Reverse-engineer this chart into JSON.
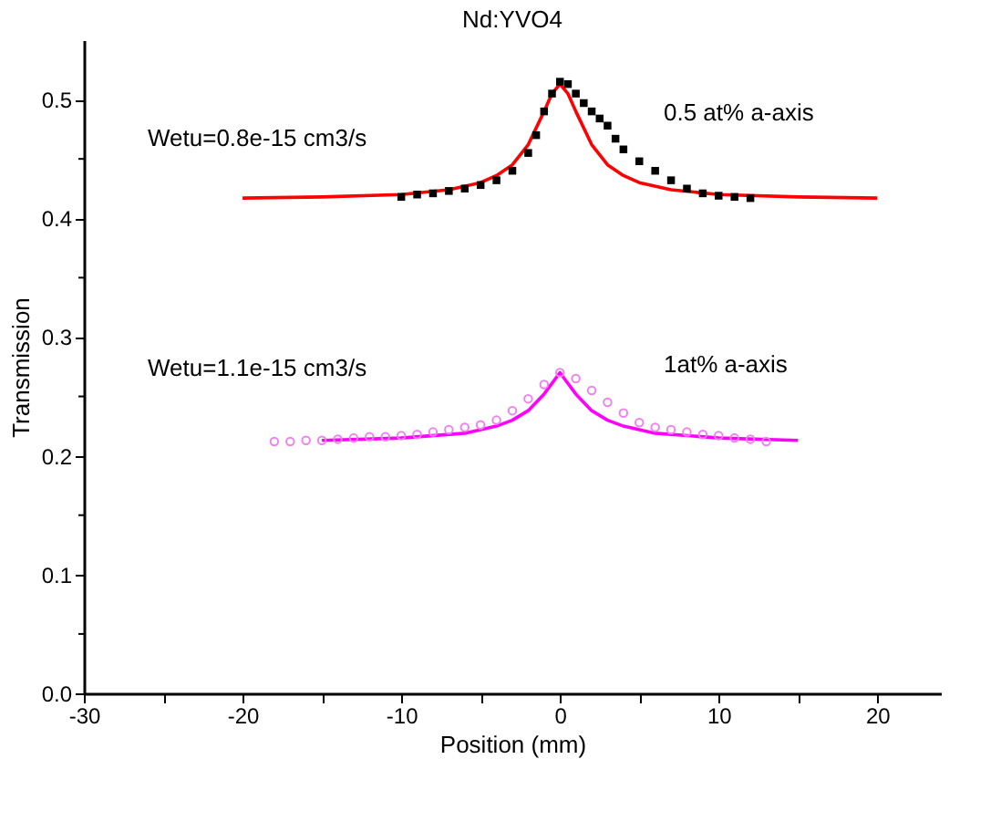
{
  "chart_data": {
    "type": "scatter",
    "title": "Nd:YVO4",
    "xlabel": "Position (mm)",
    "ylabel": "Transmission",
    "xlim": [
      -30,
      24
    ],
    "ylim": [
      0,
      0.55
    ],
    "xticks": [
      -30,
      {
        "value": -25,
        "label": null
      },
      -20,
      {
        "value": -15,
        "label": null
      },
      -10,
      {
        "value": -5,
        "label": null
      },
      0,
      {
        "value": 5,
        "label": null
      },
      10,
      {
        "value": 15,
        "label": null
      },
      20
    ],
    "yticks": [
      {
        "value": 0,
        "label": "0.0"
      },
      {
        "value": 0.05,
        "label": null
      },
      0.1,
      {
        "value": 0.15,
        "label": null
      },
      0.2,
      {
        "value": 0.25,
        "label": null
      },
      0.3,
      {
        "value": 0.35,
        "label": null
      },
      0.4,
      {
        "value": 0.45,
        "label": null
      },
      0.5
    ],
    "grid": false,
    "legend": false,
    "annotations": [
      "Wetu=0.8e-15 cm3/s",
      "Wetu=1.1e-15 cm3/s"
    ],
    "series": [
      {
        "name": "0.5 at%  a-axis",
        "marker": "square",
        "color": "#000000",
        "x": [
          -10,
          -9,
          -8,
          -7,
          -6,
          -5,
          -4,
          -3,
          -2,
          -1.5,
          -1,
          -0.5,
          0,
          0.5,
          1,
          1.5,
          2,
          2.5,
          3,
          3.5,
          4,
          5,
          6,
          7,
          8,
          9,
          10,
          11,
          12
        ],
        "values": [
          0.418,
          0.42,
          0.421,
          0.423,
          0.425,
          0.428,
          0.432,
          0.44,
          0.455,
          0.47,
          0.49,
          0.505,
          0.515,
          0.513,
          0.505,
          0.497,
          0.49,
          0.484,
          0.478,
          0.467,
          0.458,
          0.448,
          0.44,
          0.432,
          0.425,
          0.421,
          0.419,
          0.418,
          0.417
        ]
      },
      {
        "type": "line",
        "color": "#ff0000",
        "x": [
          -20,
          -15,
          -10,
          -7,
          -5,
          -4,
          -3,
          -2,
          -1,
          -0.5,
          0,
          0.5,
          1,
          2,
          3,
          4,
          5,
          7,
          10,
          15,
          20
        ],
        "values": [
          0.417,
          0.418,
          0.42,
          0.424,
          0.43,
          0.436,
          0.445,
          0.462,
          0.49,
          0.505,
          0.513,
          0.505,
          0.49,
          0.462,
          0.445,
          0.436,
          0.43,
          0.424,
          0.42,
          0.418,
          0.417
        ]
      },
      {
        "name": "1at% a-axis",
        "marker": "circle",
        "color": "#ee82ee",
        "x": [
          -18,
          -17,
          -16,
          -15,
          -14,
          -13,
          -12,
          -11,
          -10,
          -9,
          -8,
          -7,
          -6,
          -5,
          -4,
          -3,
          -2,
          -1,
          0,
          1,
          2,
          3,
          4,
          5,
          6,
          7,
          8,
          9,
          10,
          11,
          12,
          13
        ],
        "values": [
          0.212,
          0.212,
          0.213,
          0.213,
          0.214,
          0.215,
          0.216,
          0.216,
          0.217,
          0.218,
          0.22,
          0.222,
          0.224,
          0.226,
          0.23,
          0.238,
          0.248,
          0.26,
          0.27,
          0.265,
          0.255,
          0.245,
          0.236,
          0.228,
          0.224,
          0.222,
          0.22,
          0.218,
          0.217,
          0.215,
          0.214,
          0.212
        ]
      },
      {
        "type": "line",
        "color": "#ff00ff",
        "x": [
          -15,
          -10,
          -6,
          -4,
          -3,
          -2,
          -1,
          0,
          1,
          2,
          3,
          4,
          6,
          10,
          15
        ],
        "values": [
          0.213,
          0.215,
          0.219,
          0.225,
          0.23,
          0.238,
          0.252,
          0.27,
          0.252,
          0.238,
          0.23,
          0.225,
          0.219,
          0.215,
          0.213
        ]
      }
    ]
  }
}
